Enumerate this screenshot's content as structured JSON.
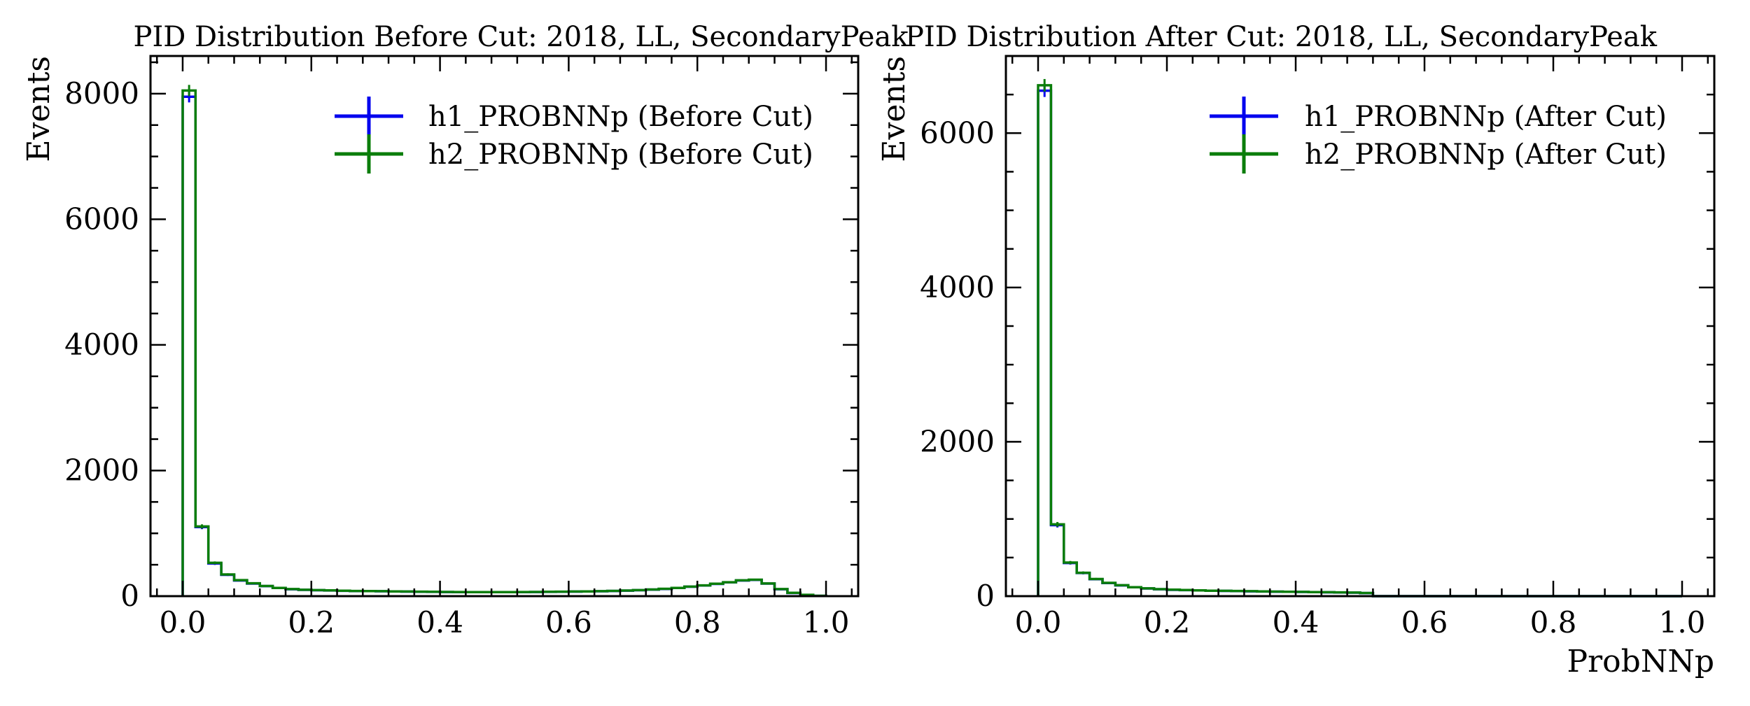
{
  "chart_data": [
    {
      "type": "histogram",
      "title": "PID Distribution Before Cut: 2018, LL, SecondaryPeak",
      "xlabel": "",
      "ylabel": "Events",
      "xlim": [
        -0.05,
        1.05
      ],
      "ylim": [
        0,
        8600
      ],
      "xticks": [
        0.0,
        0.2,
        0.4,
        0.6,
        0.8,
        1.0
      ],
      "xtick_labels": [
        "0.0",
        "0.2",
        "0.4",
        "0.6",
        "0.8",
        "1.0"
      ],
      "yticks": [
        0,
        2000,
        4000,
        6000,
        8000
      ],
      "ytick_labels": [
        "0",
        "2000",
        "4000",
        "6000",
        "8000"
      ],
      "bin_edges": [
        0.0,
        0.02,
        0.04,
        0.06,
        0.08,
        0.1,
        0.12,
        0.14,
        0.16,
        0.18,
        0.2,
        0.22,
        0.24,
        0.26,
        0.28,
        0.3,
        0.32,
        0.34,
        0.36,
        0.38,
        0.4,
        0.42,
        0.44,
        0.46,
        0.48,
        0.5,
        0.52,
        0.54,
        0.56,
        0.58,
        0.6,
        0.62,
        0.64,
        0.66,
        0.68,
        0.7,
        0.72,
        0.74,
        0.76,
        0.78,
        0.8,
        0.82,
        0.84,
        0.86,
        0.88,
        0.9,
        0.92,
        0.94,
        0.96,
        0.98,
        1.0
      ],
      "series": [
        {
          "name": "h1_PROBNNp (Before Cut)",
          "color": "#0000ee",
          "values": [
            7950,
            1100,
            520,
            340,
            250,
            200,
            160,
            130,
            110,
            100,
            95,
            90,
            85,
            80,
            80,
            78,
            75,
            72,
            70,
            68,
            66,
            65,
            64,
            63,
            63,
            64,
            65,
            66,
            68,
            70,
            72,
            75,
            78,
            82,
            88,
            95,
            105,
            115,
            130,
            150,
            170,
            195,
            220,
            250,
            260,
            200,
            110,
            50,
            20,
            5
          ]
        },
        {
          "name": "h2_PROBNNp (Before Cut)",
          "color": "#0a7d0a",
          "values": [
            8050,
            1110,
            530,
            345,
            255,
            205,
            162,
            132,
            112,
            101,
            96,
            91,
            86,
            82,
            81,
            79,
            76,
            73,
            71,
            69,
            67,
            66,
            65,
            64,
            64,
            65,
            66,
            67,
            69,
            71,
            73,
            76,
            79,
            83,
            89,
            96,
            106,
            117,
            132,
            152,
            172,
            197,
            222,
            252,
            262,
            202,
            112,
            52,
            21,
            6
          ]
        }
      ]
    },
    {
      "type": "histogram",
      "title": "PID Distribution After Cut: 2018, LL, SecondaryPeak",
      "xlabel": "ProbNNp",
      "ylabel": "Events",
      "xlim": [
        -0.05,
        1.05
      ],
      "ylim": [
        0,
        7000
      ],
      "xticks": [
        0.0,
        0.2,
        0.4,
        0.6,
        0.8,
        1.0
      ],
      "xtick_labels": [
        "0.0",
        "0.2",
        "0.4",
        "0.6",
        "0.8",
        "1.0"
      ],
      "yticks": [
        0,
        2000,
        4000,
        6000
      ],
      "ytick_labels": [
        "0",
        "2000",
        "4000",
        "6000"
      ],
      "bin_edges": [
        0.0,
        0.02,
        0.04,
        0.06,
        0.08,
        0.1,
        0.12,
        0.14,
        0.16,
        0.18,
        0.2,
        0.22,
        0.24,
        0.26,
        0.28,
        0.3,
        0.32,
        0.34,
        0.36,
        0.38,
        0.4,
        0.42,
        0.44,
        0.46,
        0.48,
        0.5,
        0.52,
        0.54,
        0.56,
        0.58,
        0.6,
        0.62,
        0.64,
        0.66,
        0.68,
        0.7,
        0.72,
        0.74,
        0.76,
        0.78,
        0.8,
        0.82,
        0.84,
        0.86,
        0.88,
        0.9,
        0.92,
        0.94,
        0.96,
        0.98,
        1.0
      ],
      "series": [
        {
          "name": "h1_PROBNNp (After Cut)",
          "color": "#0000ee",
          "values": [
            6550,
            920,
            430,
            300,
            220,
            170,
            140,
            115,
            100,
            90,
            82,
            78,
            74,
            70,
            68,
            66,
            63,
            60,
            58,
            56,
            54,
            52,
            50,
            48,
            45,
            40,
            0,
            0,
            0,
            0,
            0,
            0,
            0,
            0,
            0,
            0,
            0,
            0,
            0,
            0,
            0,
            0,
            0,
            0,
            0,
            0,
            0,
            0,
            0,
            0
          ]
        },
        {
          "name": "h2_PROBNNp (After Cut)",
          "color": "#0a7d0a",
          "values": [
            6620,
            930,
            435,
            303,
            222,
            172,
            141,
            116,
            101,
            91,
            83,
            79,
            75,
            71,
            69,
            67,
            64,
            61,
            59,
            57,
            55,
            53,
            51,
            49,
            46,
            41,
            0,
            0,
            0,
            0,
            0,
            0,
            0,
            0,
            0,
            0,
            0,
            0,
            0,
            0,
            0,
            0,
            0,
            0,
            0,
            0,
            0,
            0,
            0,
            0
          ]
        }
      ]
    }
  ]
}
